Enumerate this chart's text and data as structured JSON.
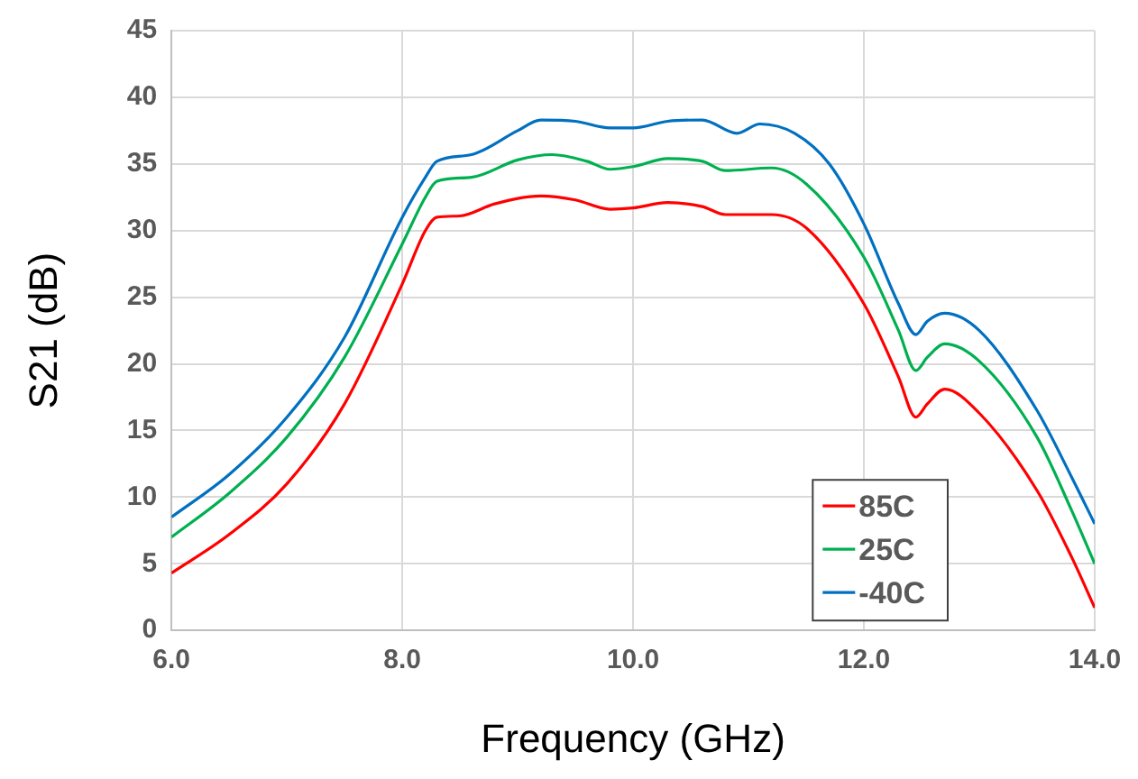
{
  "chart_data": {
    "type": "line",
    "xlabel": "Frequency (GHz)",
    "ylabel": "S21 (dB)",
    "xlim": [
      6,
      14
    ],
    "xticks": [
      {
        "value": 6,
        "label": "6.0"
      },
      {
        "value": 8,
        "label": "8.0"
      },
      {
        "value": 10,
        "label": "10.0"
      },
      {
        "value": 12,
        "label": "12.0"
      },
      {
        "value": 14,
        "label": "14.0"
      }
    ],
    "ylim": [
      0,
      45
    ],
    "yticks": [
      0,
      5,
      10,
      15,
      20,
      25,
      30,
      35,
      40,
      45
    ],
    "grid": true,
    "legend": "bottom right",
    "marker": "none",
    "line_style": "solid",
    "series": [
      {
        "name": "85C",
        "color": "#ff0000",
        "x": [
          6,
          6.5,
          7,
          7.5,
          8,
          8.2,
          8.3,
          8.5,
          8.8,
          9.2,
          9.5,
          9.8,
          10,
          10.3,
          10.6,
          10.8,
          11.2,
          11.5,
          12,
          12.3,
          12.45,
          12.55,
          12.7,
          13,
          13.5,
          13.8,
          14
        ],
        "values": [
          4.3,
          7.2,
          11,
          17,
          26,
          30,
          31,
          31.1,
          32,
          32.6,
          32.3,
          31.6,
          31.7,
          32.1,
          31.8,
          31.2,
          31.2,
          30.2,
          24.5,
          19,
          16,
          17,
          18.1,
          16.3,
          10.5,
          5.5,
          1.7
        ]
      },
      {
        "name": "25C",
        "color": "#00b050",
        "x": [
          6,
          6.5,
          7,
          7.5,
          8,
          8.2,
          8.3,
          8.6,
          9,
          9.3,
          9.6,
          9.8,
          10,
          10.3,
          10.6,
          10.8,
          11.2,
          11.5,
          12,
          12.3,
          12.45,
          12.55,
          12.7,
          13,
          13.5,
          13.8,
          14
        ],
        "values": [
          7,
          10.3,
          14.5,
          20.5,
          29,
          32.5,
          33.7,
          34,
          35.3,
          35.7,
          35.2,
          34.6,
          34.8,
          35.4,
          35.2,
          34.5,
          34.7,
          33.5,
          28,
          22.5,
          19.5,
          20.5,
          21.5,
          20.2,
          14.5,
          9,
          5
        ]
      },
      {
        "name": "-40C",
        "color": "#0070c0",
        "x": [
          6,
          6.5,
          7,
          7.5,
          8,
          8.2,
          8.3,
          8.6,
          9,
          9.2,
          9.5,
          9.8,
          10,
          10.3,
          10.6,
          10.9,
          11.1,
          11.4,
          11.7,
          12,
          12.3,
          12.45,
          12.55,
          12.7,
          13,
          13.5,
          13.8,
          14
        ],
        "values": [
          8.5,
          11.7,
          16,
          22,
          31,
          34,
          35.2,
          35.7,
          37.5,
          38.3,
          38.2,
          37.7,
          37.7,
          38.2,
          38.3,
          37.3,
          38,
          37.3,
          35,
          30.5,
          24.5,
          22.2,
          23.2,
          23.8,
          22.5,
          16.5,
          11.5,
          8
        ]
      }
    ]
  }
}
